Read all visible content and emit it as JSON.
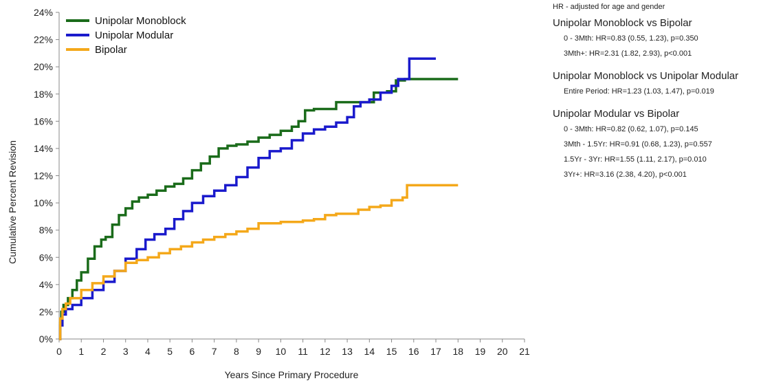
{
  "chart_data": {
    "type": "line",
    "title": "",
    "xlabel": "Years Since Primary Procedure",
    "ylabel": "Cumulative Percent Revision",
    "xlim": [
      0,
      21
    ],
    "ylim": [
      0,
      24
    ],
    "x_ticks": [
      "0",
      "1",
      "2",
      "3",
      "4",
      "5",
      "6",
      "7",
      "8",
      "9",
      "10",
      "11",
      "12",
      "13",
      "14",
      "15",
      "16",
      "17",
      "18",
      "19",
      "20",
      "21"
    ],
    "y_ticks": [
      "0%",
      "2%",
      "4%",
      "6%",
      "8%",
      "10%",
      "12%",
      "14%",
      "16%",
      "18%",
      "20%",
      "22%",
      "24%"
    ],
    "legend_position": "top-left",
    "series": [
      {
        "name": "Unipolar Monoblock",
        "color": "#1a6b1a",
        "points": [
          [
            0,
            0
          ],
          [
            0.05,
            1.2
          ],
          [
            0.1,
            2.0
          ],
          [
            0.2,
            2.5
          ],
          [
            0.4,
            3.0
          ],
          [
            0.6,
            3.6
          ],
          [
            0.8,
            4.3
          ],
          [
            1.0,
            4.9
          ],
          [
            1.3,
            5.9
          ],
          [
            1.6,
            6.8
          ],
          [
            1.9,
            7.3
          ],
          [
            2.1,
            7.5
          ],
          [
            2.4,
            8.4
          ],
          [
            2.7,
            9.1
          ],
          [
            3.0,
            9.6
          ],
          [
            3.3,
            10.1
          ],
          [
            3.6,
            10.4
          ],
          [
            4.0,
            10.6
          ],
          [
            4.4,
            10.9
          ],
          [
            4.8,
            11.2
          ],
          [
            5.2,
            11.4
          ],
          [
            5.6,
            11.8
          ],
          [
            6.0,
            12.4
          ],
          [
            6.4,
            12.9
          ],
          [
            6.8,
            13.4
          ],
          [
            7.2,
            14.0
          ],
          [
            7.6,
            14.2
          ],
          [
            8.0,
            14.3
          ],
          [
            8.5,
            14.5
          ],
          [
            9.0,
            14.8
          ],
          [
            9.5,
            15.0
          ],
          [
            10.0,
            15.3
          ],
          [
            10.5,
            15.6
          ],
          [
            10.8,
            16.0
          ],
          [
            11.1,
            16.8
          ],
          [
            11.5,
            16.9
          ],
          [
            12.0,
            16.9
          ],
          [
            12.5,
            17.4
          ],
          [
            13.0,
            17.4
          ],
          [
            13.6,
            17.4
          ],
          [
            13.9,
            17.4
          ],
          [
            14.2,
            18.1
          ],
          [
            14.8,
            18.2
          ],
          [
            15.2,
            19.0
          ],
          [
            15.6,
            19.1
          ],
          [
            18.0,
            19.1
          ]
        ]
      },
      {
        "name": "Unipolar Modular",
        "color": "#1a1acc",
        "points": [
          [
            0,
            0
          ],
          [
            0.05,
            1.0
          ],
          [
            0.15,
            1.8
          ],
          [
            0.3,
            2.2
          ],
          [
            0.6,
            2.5
          ],
          [
            1.0,
            3.0
          ],
          [
            1.5,
            3.6
          ],
          [
            2.0,
            4.2
          ],
          [
            2.5,
            5.0
          ],
          [
            3.0,
            5.9
          ],
          [
            3.5,
            6.6
          ],
          [
            3.9,
            7.3
          ],
          [
            4.3,
            7.7
          ],
          [
            4.8,
            8.1
          ],
          [
            5.2,
            8.8
          ],
          [
            5.6,
            9.4
          ],
          [
            6.0,
            10.0
          ],
          [
            6.5,
            10.5
          ],
          [
            7.0,
            10.9
          ],
          [
            7.5,
            11.3
          ],
          [
            8.0,
            11.9
          ],
          [
            8.5,
            12.6
          ],
          [
            9.0,
            13.3
          ],
          [
            9.5,
            13.8
          ],
          [
            10.0,
            14.0
          ],
          [
            10.5,
            14.6
          ],
          [
            11.0,
            15.1
          ],
          [
            11.5,
            15.4
          ],
          [
            12.0,
            15.6
          ],
          [
            12.5,
            15.9
          ],
          [
            13.0,
            16.3
          ],
          [
            13.3,
            17.1
          ],
          [
            13.6,
            17.4
          ],
          [
            14.0,
            17.6
          ],
          [
            14.5,
            18.1
          ],
          [
            15.0,
            18.6
          ],
          [
            15.3,
            19.1
          ],
          [
            15.7,
            19.1
          ],
          [
            15.8,
            20.6
          ],
          [
            17.0,
            20.6
          ]
        ]
      },
      {
        "name": "Bipolar",
        "color": "#f4a81a",
        "points": [
          [
            0,
            0
          ],
          [
            0.05,
            1.5
          ],
          [
            0.15,
            2.2
          ],
          [
            0.3,
            2.6
          ],
          [
            0.5,
            3.0
          ],
          [
            1.0,
            3.6
          ],
          [
            1.5,
            4.1
          ],
          [
            2.0,
            4.6
          ],
          [
            2.5,
            5.0
          ],
          [
            3.0,
            5.6
          ],
          [
            3.5,
            5.8
          ],
          [
            4.0,
            6.0
          ],
          [
            4.5,
            6.3
          ],
          [
            5.0,
            6.6
          ],
          [
            5.5,
            6.8
          ],
          [
            6.0,
            7.1
          ],
          [
            6.5,
            7.3
          ],
          [
            7.0,
            7.5
          ],
          [
            7.5,
            7.7
          ],
          [
            8.0,
            7.9
          ],
          [
            8.5,
            8.1
          ],
          [
            9.0,
            8.5
          ],
          [
            9.5,
            8.5
          ],
          [
            10.0,
            8.6
          ],
          [
            10.5,
            8.6
          ],
          [
            11.0,
            8.7
          ],
          [
            11.5,
            8.8
          ],
          [
            12.0,
            9.1
          ],
          [
            12.5,
            9.2
          ],
          [
            13.0,
            9.2
          ],
          [
            13.5,
            9.5
          ],
          [
            14.0,
            9.7
          ],
          [
            14.5,
            9.8
          ],
          [
            15.0,
            10.2
          ],
          [
            15.5,
            10.4
          ],
          [
            15.7,
            11.3
          ],
          [
            18.0,
            11.3
          ]
        ]
      }
    ]
  },
  "stats_panel": {
    "note": "HR - adjusted for age and gender",
    "comparisons": [
      {
        "title": "Unipolar Monoblock vs Bipolar",
        "lines": [
          "0 - 3Mth: HR=0.83 (0.55, 1.23), p=0.350",
          "3Mth+: HR=2.31 (1.82, 2.93), p<0.001"
        ]
      },
      {
        "title": "Unipolar Monoblock vs Unipolar Modular",
        "lines": [
          "Entire Period: HR=1.23 (1.03, 1.47), p=0.019"
        ]
      },
      {
        "title": "Unipolar Modular vs Bipolar",
        "lines": [
          "0 - 3Mth: HR=0.82 (0.62, 1.07), p=0.145",
          "3Mth - 1.5Yr: HR=0.91 (0.68, 1.23), p=0.557",
          "1.5Yr - 3Yr: HR=1.55 (1.11, 2.17), p=0.010",
          "3Yr+: HR=3.16 (2.38, 4.20), p<0.001"
        ]
      }
    ]
  }
}
